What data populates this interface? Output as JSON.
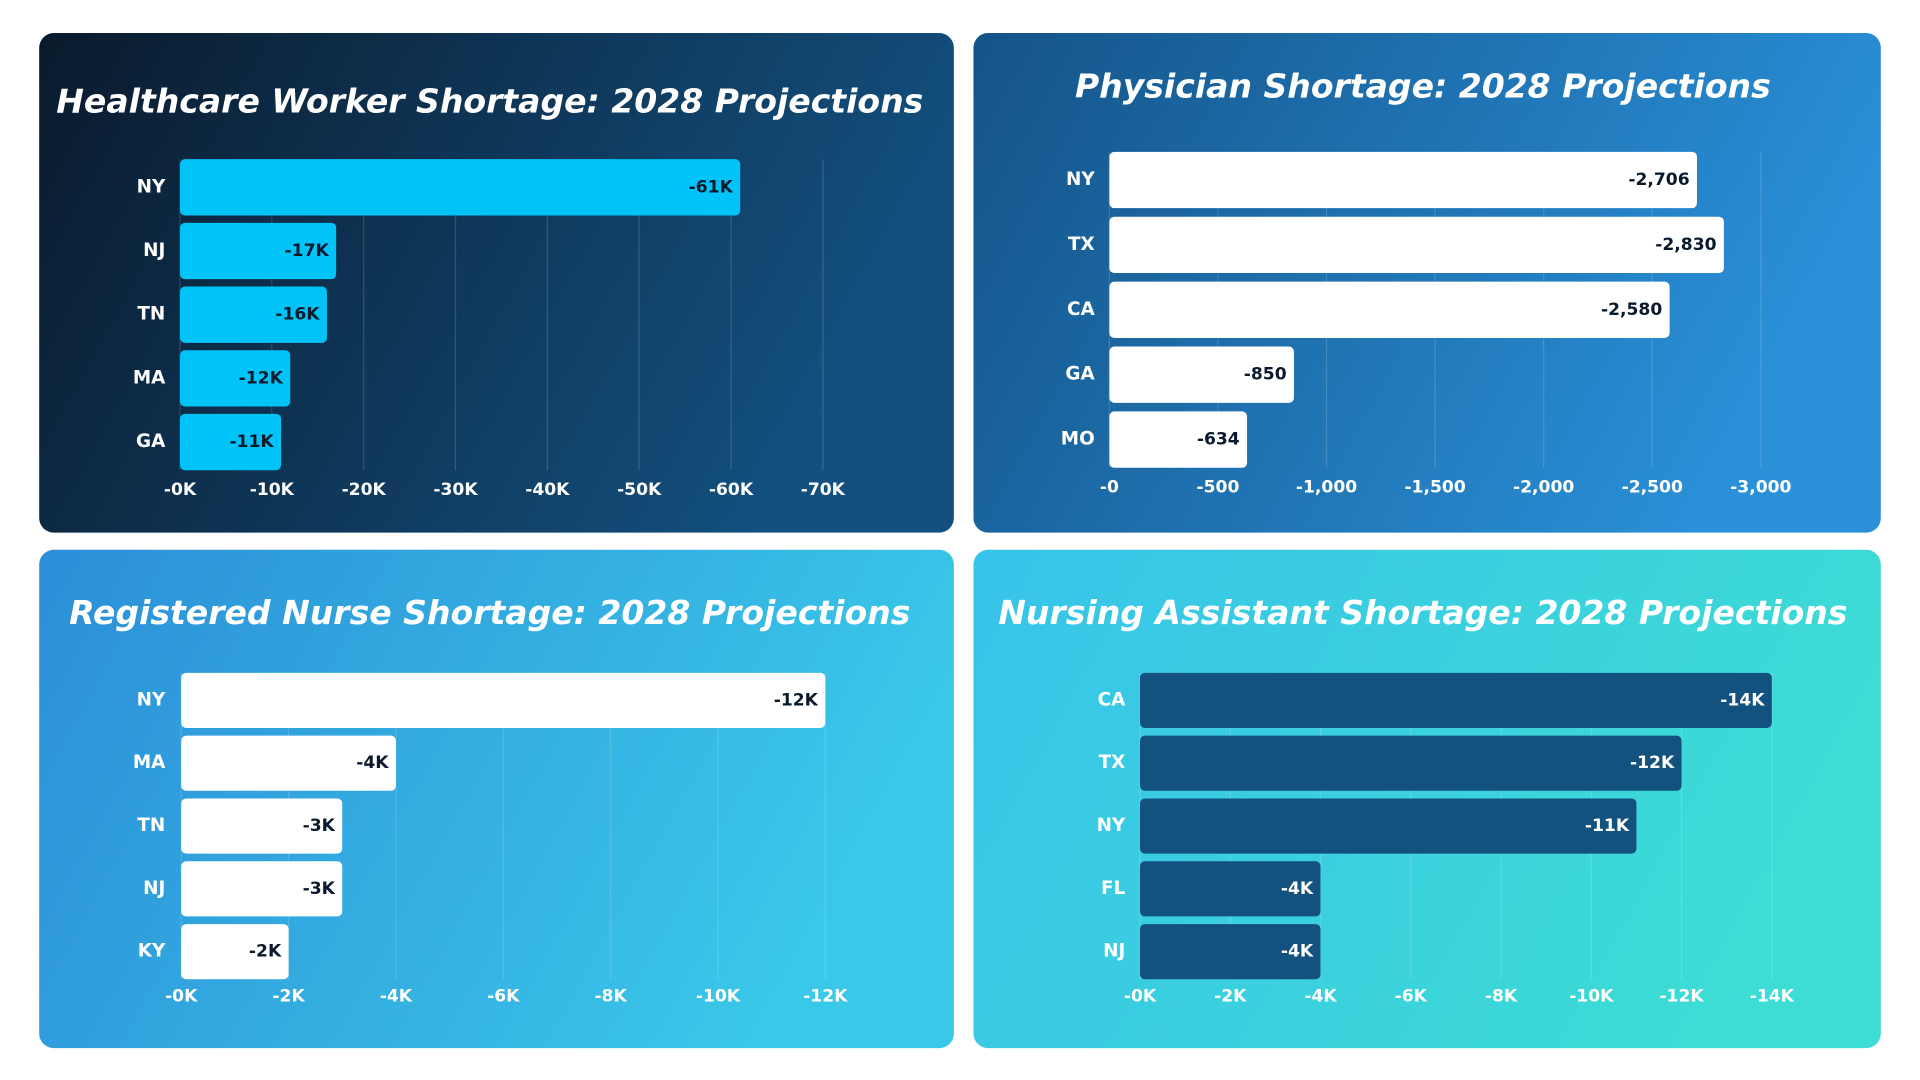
{
  "chart_data": [
    {
      "type": "bar",
      "orientation": "horizontal",
      "title": "Healthcare Worker Shortage: 2028 Projections",
      "categories": [
        "NY",
        "NJ",
        "TN",
        "MA",
        "GA"
      ],
      "values": [
        -61000,
        -17000,
        -16000,
        -12000,
        -11000
      ],
      "value_labels": [
        "-61K",
        "-17K",
        "-16K",
        "-12K",
        "-11K"
      ],
      "color": "#00c3f7",
      "xlim": [
        0,
        -70000
      ],
      "xticks": [
        {
          "value": 0,
          "label": "-0K"
        },
        {
          "value": -10000,
          "label": "-10K"
        },
        {
          "value": -20000,
          "label": "-20K"
        },
        {
          "value": -30000,
          "label": "-30K"
        },
        {
          "value": -40000,
          "label": "-40K"
        },
        {
          "value": -50000,
          "label": "-50K"
        },
        {
          "value": -60000,
          "label": "-60K"
        },
        {
          "value": -70000,
          "label": "-70K"
        }
      ],
      "grid": true
    },
    {
      "type": "bar",
      "orientation": "horizontal",
      "title": "Physician Shortage: 2028 Projections",
      "categories": [
        "NY",
        "TX",
        "CA",
        "GA",
        "MO"
      ],
      "values": [
        -2706,
        -2830,
        -2580,
        -850,
        -634
      ],
      "value_labels": [
        "-2,706",
        "-2,830",
        "-2,580",
        "-850",
        "-634"
      ],
      "color": "#ffffff",
      "xlim": [
        0,
        -3000
      ],
      "xticks": [
        {
          "value": 0,
          "label": "-0"
        },
        -500,
        {
          "value": -1000,
          "label": "-1,000"
        },
        {
          "value": -1500,
          "label": "-1,500"
        },
        {
          "value": -2000,
          "label": "-2,000"
        },
        {
          "value": -2500,
          "label": "-2,500"
        },
        {
          "value": -3000,
          "label": "-3,000"
        }
      ],
      "grid": true
    },
    {
      "type": "bar",
      "orientation": "horizontal",
      "title": "Registered Nurse Shortage: 2028 Projections",
      "categories": [
        "NY",
        "MA",
        "TN",
        "NJ",
        "KY"
      ],
      "values": [
        -12000,
        -4000,
        -3000,
        -3000,
        -2000
      ],
      "value_labels": [
        "-12K",
        "-4K",
        "-3K",
        "-3K",
        "-2K"
      ],
      "color": "#ffffff",
      "xlim": [
        0,
        -12000
      ],
      "xticks": [
        {
          "value": 0,
          "label": "-0K"
        },
        {
          "value": -2000,
          "label": "-2K"
        },
        {
          "value": -4000,
          "label": "-4K"
        },
        {
          "value": -6000,
          "label": "-6K"
        },
        {
          "value": -8000,
          "label": "-8K"
        },
        {
          "value": -10000,
          "label": "-10K"
        },
        {
          "value": -12000,
          "label": "-12K"
        }
      ],
      "grid": true
    },
    {
      "type": "bar",
      "orientation": "horizontal",
      "title": "Nursing Assistant Shortage: 2028 Projections",
      "categories": [
        "CA",
        "TX",
        "NY",
        "FL",
        "NJ"
      ],
      "values": [
        -14000,
        -12000,
        -11000,
        -4000,
        -4000
      ],
      "value_labels": [
        "-14K",
        "-12K",
        "-11K",
        "-4K",
        "-4K"
      ],
      "color": "#13517f",
      "xlim": [
        0,
        -14000
      ],
      "xticks": [
        {
          "value": 0,
          "label": "-0K"
        },
        {
          "value": -2000,
          "label": "-2K"
        },
        {
          "value": -4000,
          "label": "-4K"
        },
        {
          "value": -6000,
          "label": "-6K"
        },
        {
          "value": -8000,
          "label": "-8K"
        },
        {
          "value": -10000,
          "label": "-10K"
        },
        {
          "value": -12000,
          "label": "-12K"
        },
        {
          "value": -14000,
          "label": "-14K"
        }
      ],
      "grid": true
    }
  ]
}
